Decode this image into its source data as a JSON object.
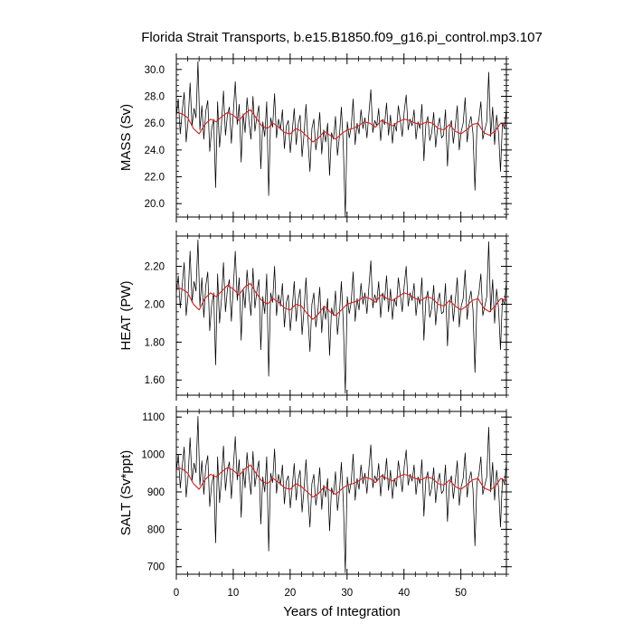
{
  "chart_data": {
    "type": "line",
    "title": "Florida Strait Transports, b.e15.B1850.f09_g16.pi_control.mp3.107",
    "xlabel": "Years of Integration",
    "xlim": [
      0,
      58
    ],
    "xticks": [
      0,
      10,
      20,
      30,
      40,
      50
    ],
    "panels": [
      {
        "ylabel": "MASS (Sv)",
        "ylim": [
          19.0,
          30.8
        ],
        "yticks": [
          20.0,
          22.0,
          24.0,
          26.0,
          28.0,
          30.0
        ],
        "ytick_labels": [
          "20.0",
          "22.0",
          "24.0",
          "26.0",
          "28.0",
          "30.0"
        ],
        "series": [
          {
            "role": "monthly",
            "color": "#000000",
            "values": [
              26.5,
              27.8,
              25.2,
              26.9,
              28.3,
              24.6,
              26.2,
              29.0,
              25.8,
              27.1,
              26.4,
              30.6,
              25.5,
              27.3,
              24.8,
              26.9,
              27.7,
              23.9,
              25.6,
              26.3,
              21.2,
              27.6,
              24.2,
              26.0,
              28.4,
              25.1,
              26.6,
              27.2,
              24.5,
              26.8,
              29.1,
              25.9,
              27.4,
              23.1,
              26.7,
              25.3,
              27.9,
              26.1,
              24.8,
              28.0,
              25.4,
              26.5,
              27.3,
              22.6,
              26.1,
              25.0,
              27.6,
              20.6,
              26.4,
              25.7,
              28.2,
              24.9,
              26.3,
              25.5,
              27.0,
              24.1,
              25.8,
              26.2,
              23.8,
              25.4,
              27.1,
              24.4,
              25.9,
              26.6,
              23.5,
              25.2,
              27.4,
              24.7,
              22.4,
              25.6,
              26.3,
              24.0,
              25.1,
              26.8,
              23.7,
              25.5,
              24.6,
              26.0,
              22.1,
              25.3,
              24.8,
              26.5,
              23.6,
              25.0,
              27.2,
              24.3,
              19.0,
              26.1,
              24.9,
              25.7,
              27.8,
              24.4,
              26.0,
              25.2,
              27.0,
              25.6,
              26.4,
              24.9,
              26.7,
              28.5,
              25.3,
              26.2,
              25.8,
              27.1,
              24.7,
              26.3,
              25.9,
              27.5,
              25.1,
              26.6,
              24.5,
              26.0,
              25.4,
              27.3,
              26.2,
              25.0,
              26.9,
              28.1,
              25.5,
              26.3,
              25.8,
              27.0,
              24.8,
              26.1,
              25.6,
              27.4,
              23.2,
              25.9,
              26.5,
              24.7,
              25.3,
              26.8,
              24.2,
              25.7,
              26.4,
              24.9,
              25.1,
              27.0,
              22.8,
              25.6,
              26.2,
              24.5,
              25.8,
              27.3,
              24.0,
              25.4,
              26.0,
              27.9,
              24.6,
              25.9,
              26.5,
              25.2,
              21.0,
              25.7,
              26.3,
              27.6,
              24.8,
              25.5,
              26.1,
              29.8,
              25.0,
              27.2,
              24.4,
              26.6,
              25.3,
              22.4,
              26.0,
              25.6,
              27.1
            ]
          },
          {
            "role": "smoothed",
            "color": "#d62020",
            "values": [
              26.8,
              26.7,
              26.4,
              25.6,
              25.2,
              25.9,
              26.3,
              26.1,
              26.5,
              26.8,
              26.6,
              26.2,
              26.7,
              27.0,
              26.4,
              25.8,
              25.6,
              26.0,
              25.7,
              25.3,
              25.2,
              25.6,
              25.4,
              25.0,
              24.6,
              24.9,
              25.4,
              25.1,
              24.8,
              25.2,
              25.5,
              25.6,
              25.8,
              26.1,
              26.0,
              25.7,
              26.2,
              26.0,
              25.8,
              26.1,
              26.3,
              26.2,
              26.0,
              25.9,
              26.1,
              26.0,
              25.6,
              25.5,
              25.9,
              25.4,
              25.2,
              25.5,
              25.9,
              26.0,
              25.3,
              25.1,
              25.4,
              26.0,
              25.8
            ]
          }
        ]
      },
      {
        "ylabel": "HEAT (PW)",
        "ylim": [
          1.52,
          2.36
        ],
        "yticks": [
          1.6,
          1.8,
          2.0,
          2.2
        ],
        "ytick_labels": [
          "1.60",
          "1.80",
          "2.00",
          "2.20"
        ],
        "series": [
          {
            "role": "monthly",
            "color": "#000000",
            "values": [
              2.06,
              2.15,
              1.98,
              2.1,
              2.22,
              1.94,
              2.05,
              2.28,
              2.01,
              2.12,
              2.07,
              2.34,
              1.99,
              2.14,
              1.93,
              2.1,
              2.17,
              1.86,
              2.0,
              2.06,
              1.68,
              2.16,
              1.9,
              2.03,
              2.22,
              1.96,
              2.08,
              2.13,
              1.91,
              2.09,
              2.28,
              2.02,
              2.14,
              1.81,
              2.08,
              1.98,
              2.18,
              2.04,
              1.94,
              2.19,
              1.98,
              2.07,
              2.13,
              1.76,
              2.04,
              1.95,
              2.16,
              1.62,
              2.06,
              2.01,
              2.2,
              1.94,
              2.05,
              1.99,
              2.11,
              1.88,
              2.01,
              2.05,
              1.86,
              1.98,
              2.12,
              1.91,
              2.02,
              2.08,
              1.84,
              1.97,
              2.14,
              1.93,
              1.75,
              2.0,
              2.06,
              1.88,
              1.96,
              2.09,
              1.85,
              1.99,
              1.92,
              2.03,
              1.73,
              1.98,
              1.94,
              2.07,
              1.84,
              1.95,
              2.12,
              1.9,
              1.53,
              2.04,
              1.95,
              2.01,
              2.17,
              1.91,
              2.03,
              1.97,
              2.11,
              2.0,
              2.06,
              1.95,
              2.09,
              2.23,
              1.98,
              2.05,
              2.01,
              2.12,
              1.93,
              2.06,
              2.02,
              2.15,
              1.96,
              2.08,
              1.92,
              2.03,
              1.99,
              2.14,
              2.05,
              1.96,
              2.1,
              2.2,
              1.99,
              2.06,
              2.02,
              2.11,
              1.94,
              2.04,
              2.0,
              2.14,
              1.81,
              2.02,
              2.07,
              1.93,
              1.98,
              2.1,
              1.89,
              2.01,
              2.06,
              1.95,
              1.96,
              2.11,
              1.78,
              2.0,
              2.05,
              1.91,
              2.02,
              2.14,
              1.88,
              1.99,
              2.03,
              2.18,
              1.92,
              2.02,
              2.07,
              1.97,
              1.64,
              2.01,
              2.06,
              2.16,
              1.94,
              1.99,
              2.04,
              2.33,
              1.96,
              2.13,
              1.9,
              2.08,
              1.98,
              1.76,
              2.03,
              2.0,
              2.12
            ]
          },
          {
            "role": "smoothed",
            "color": "#d62020",
            "values": [
              2.09,
              2.08,
              2.06,
              2.0,
              1.97,
              2.03,
              2.06,
              2.04,
              2.07,
              2.1,
              2.08,
              2.05,
              2.09,
              2.11,
              2.06,
              2.02,
              2.0,
              2.03,
              2.01,
              1.98,
              1.97,
              2.0,
              1.99,
              1.95,
              1.92,
              1.95,
              1.99,
              1.96,
              1.94,
              1.97,
              2.0,
              2.01,
              2.02,
              2.04,
              2.03,
              2.01,
              2.05,
              2.03,
              2.02,
              2.04,
              2.06,
              2.05,
              2.03,
              2.02,
              2.04,
              2.03,
              2.0,
              1.99,
              2.02,
              1.99,
              1.97,
              1.99,
              2.02,
              2.03,
              1.98,
              1.96,
              1.99,
              2.03,
              2.02
            ]
          }
        ]
      },
      {
        "ylabel": "SALT (Sv*ppt)",
        "ylim": [
          680,
          1115
        ],
        "yticks": [
          700,
          800,
          900,
          1000,
          1100
        ],
        "ytick_labels": [
          "700",
          "800",
          "900",
          "1000",
          "1100"
        ],
        "series": [
          {
            "role": "monthly",
            "color": "#000000",
            "values": [
              955,
              1000,
              910,
              968,
              1020,
              886,
              943,
              1045,
              930,
              977,
              951,
              1102,
              918,
              983,
              893,
              969,
              997,
              861,
              922,
              947,
              764,
              994,
              871,
              936,
              1023,
              904,
              958,
              980,
              882,
              965,
              1048,
              932,
              986,
              832,
              962,
              911,
              1005,
              940,
              893,
              1008,
              914,
              954,
              983,
              814,
              940,
              900,
              994,
              742,
              950,
              925,
              1015,
              896,
              947,
              918,
              972,
              868,
              929,
              943,
              857,
              914,
              976,
              878,
              932,
              958,
              846,
              907,
              986,
              889,
              806,
              922,
              947,
              864,
              904,
              965,
              853,
              918,
              886,
              936,
              796,
              911,
              893,
              954,
              850,
              900,
              979,
              875,
              684,
              940,
              896,
              925,
              1001,
              878,
              936,
              907,
              972,
              922,
              950,
              896,
              961,
              1026,
              911,
              943,
              929,
              976,
              889,
              947,
              932,
              990,
              904,
              958,
              882,
              936,
              914,
              983,
              943,
              900,
              968,
              1012,
              918,
              947,
              929,
              972,
              893,
              940,
              922,
              986,
              835,
              932,
              954,
              889,
              911,
              965,
              871,
              925,
              950,
              896,
              904,
              972,
              821,
              922,
              943,
              882,
              929,
              983,
              864,
              914,
              936,
              1004,
              886,
              932,
              954,
              907,
              756,
              925,
              947,
              994,
              893,
              918,
              940,
              1073,
              900,
              979,
              878,
              958,
              911,
              806,
              936,
              922,
              976
            ]
          },
          {
            "role": "smoothed",
            "color": "#d62020",
            "values": [
              965,
              962,
              950,
              922,
              907,
              932,
              947,
              940,
              954,
              965,
              958,
              943,
              961,
              972,
              950,
              929,
              922,
              936,
              925,
              911,
              907,
              922,
              914,
              900,
              886,
              896,
              914,
              904,
              893,
              907,
              918,
              922,
              929,
              940,
              936,
              925,
              943,
              936,
              929,
              940,
              947,
              943,
              936,
              932,
              940,
              936,
              922,
              918,
              932,
              914,
              907,
              918,
              932,
              936,
              911,
              904,
              914,
              936,
              929
            ]
          }
        ]
      }
    ]
  }
}
